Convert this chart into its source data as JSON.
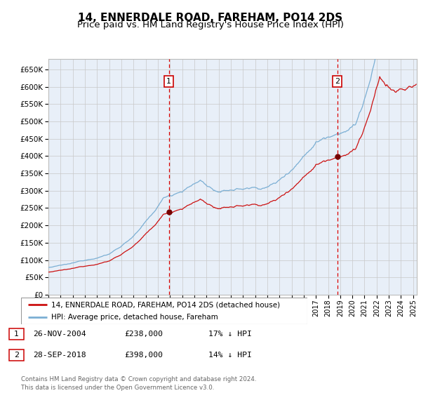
{
  "title1": "14, ENNERDALE ROAD, FAREHAM, PO14 2DS",
  "title2": "Price paid vs. HM Land Registry's House Price Index (HPI)",
  "legend1": "14, ENNERDALE ROAD, FAREHAM, PO14 2DS (detached house)",
  "legend2": "HPI: Average price, detached house, Fareham",
  "footnote": "Contains HM Land Registry data © Crown copyright and database right 2024.\nThis data is licensed under the Open Government Licence v3.0.",
  "sale1_date": "26-NOV-2004",
  "sale1_price": "£238,000",
  "sale1_hpi": "17% ↓ HPI",
  "sale2_date": "28-SEP-2018",
  "sale2_price": "£398,000",
  "sale2_hpi": "14% ↓ HPI",
  "sale1_x": 2004.9,
  "sale1_y": 238000,
  "sale2_x": 2018.75,
  "sale2_y": 398000,
  "vline1_x": 2004.9,
  "vline2_x": 2018.75,
  "ylim": [
    0,
    680000
  ],
  "xlim_start": 1995.0,
  "xlim_end": 2025.3,
  "hpi_color": "#7BAFD4",
  "price_color": "#CC1111",
  "bg_shaded_color": "#E8EFF8",
  "vline_color": "#DD0000",
  "grid_color": "#C8C8C8",
  "title1_fontsize": 11,
  "title2_fontsize": 9.5
}
